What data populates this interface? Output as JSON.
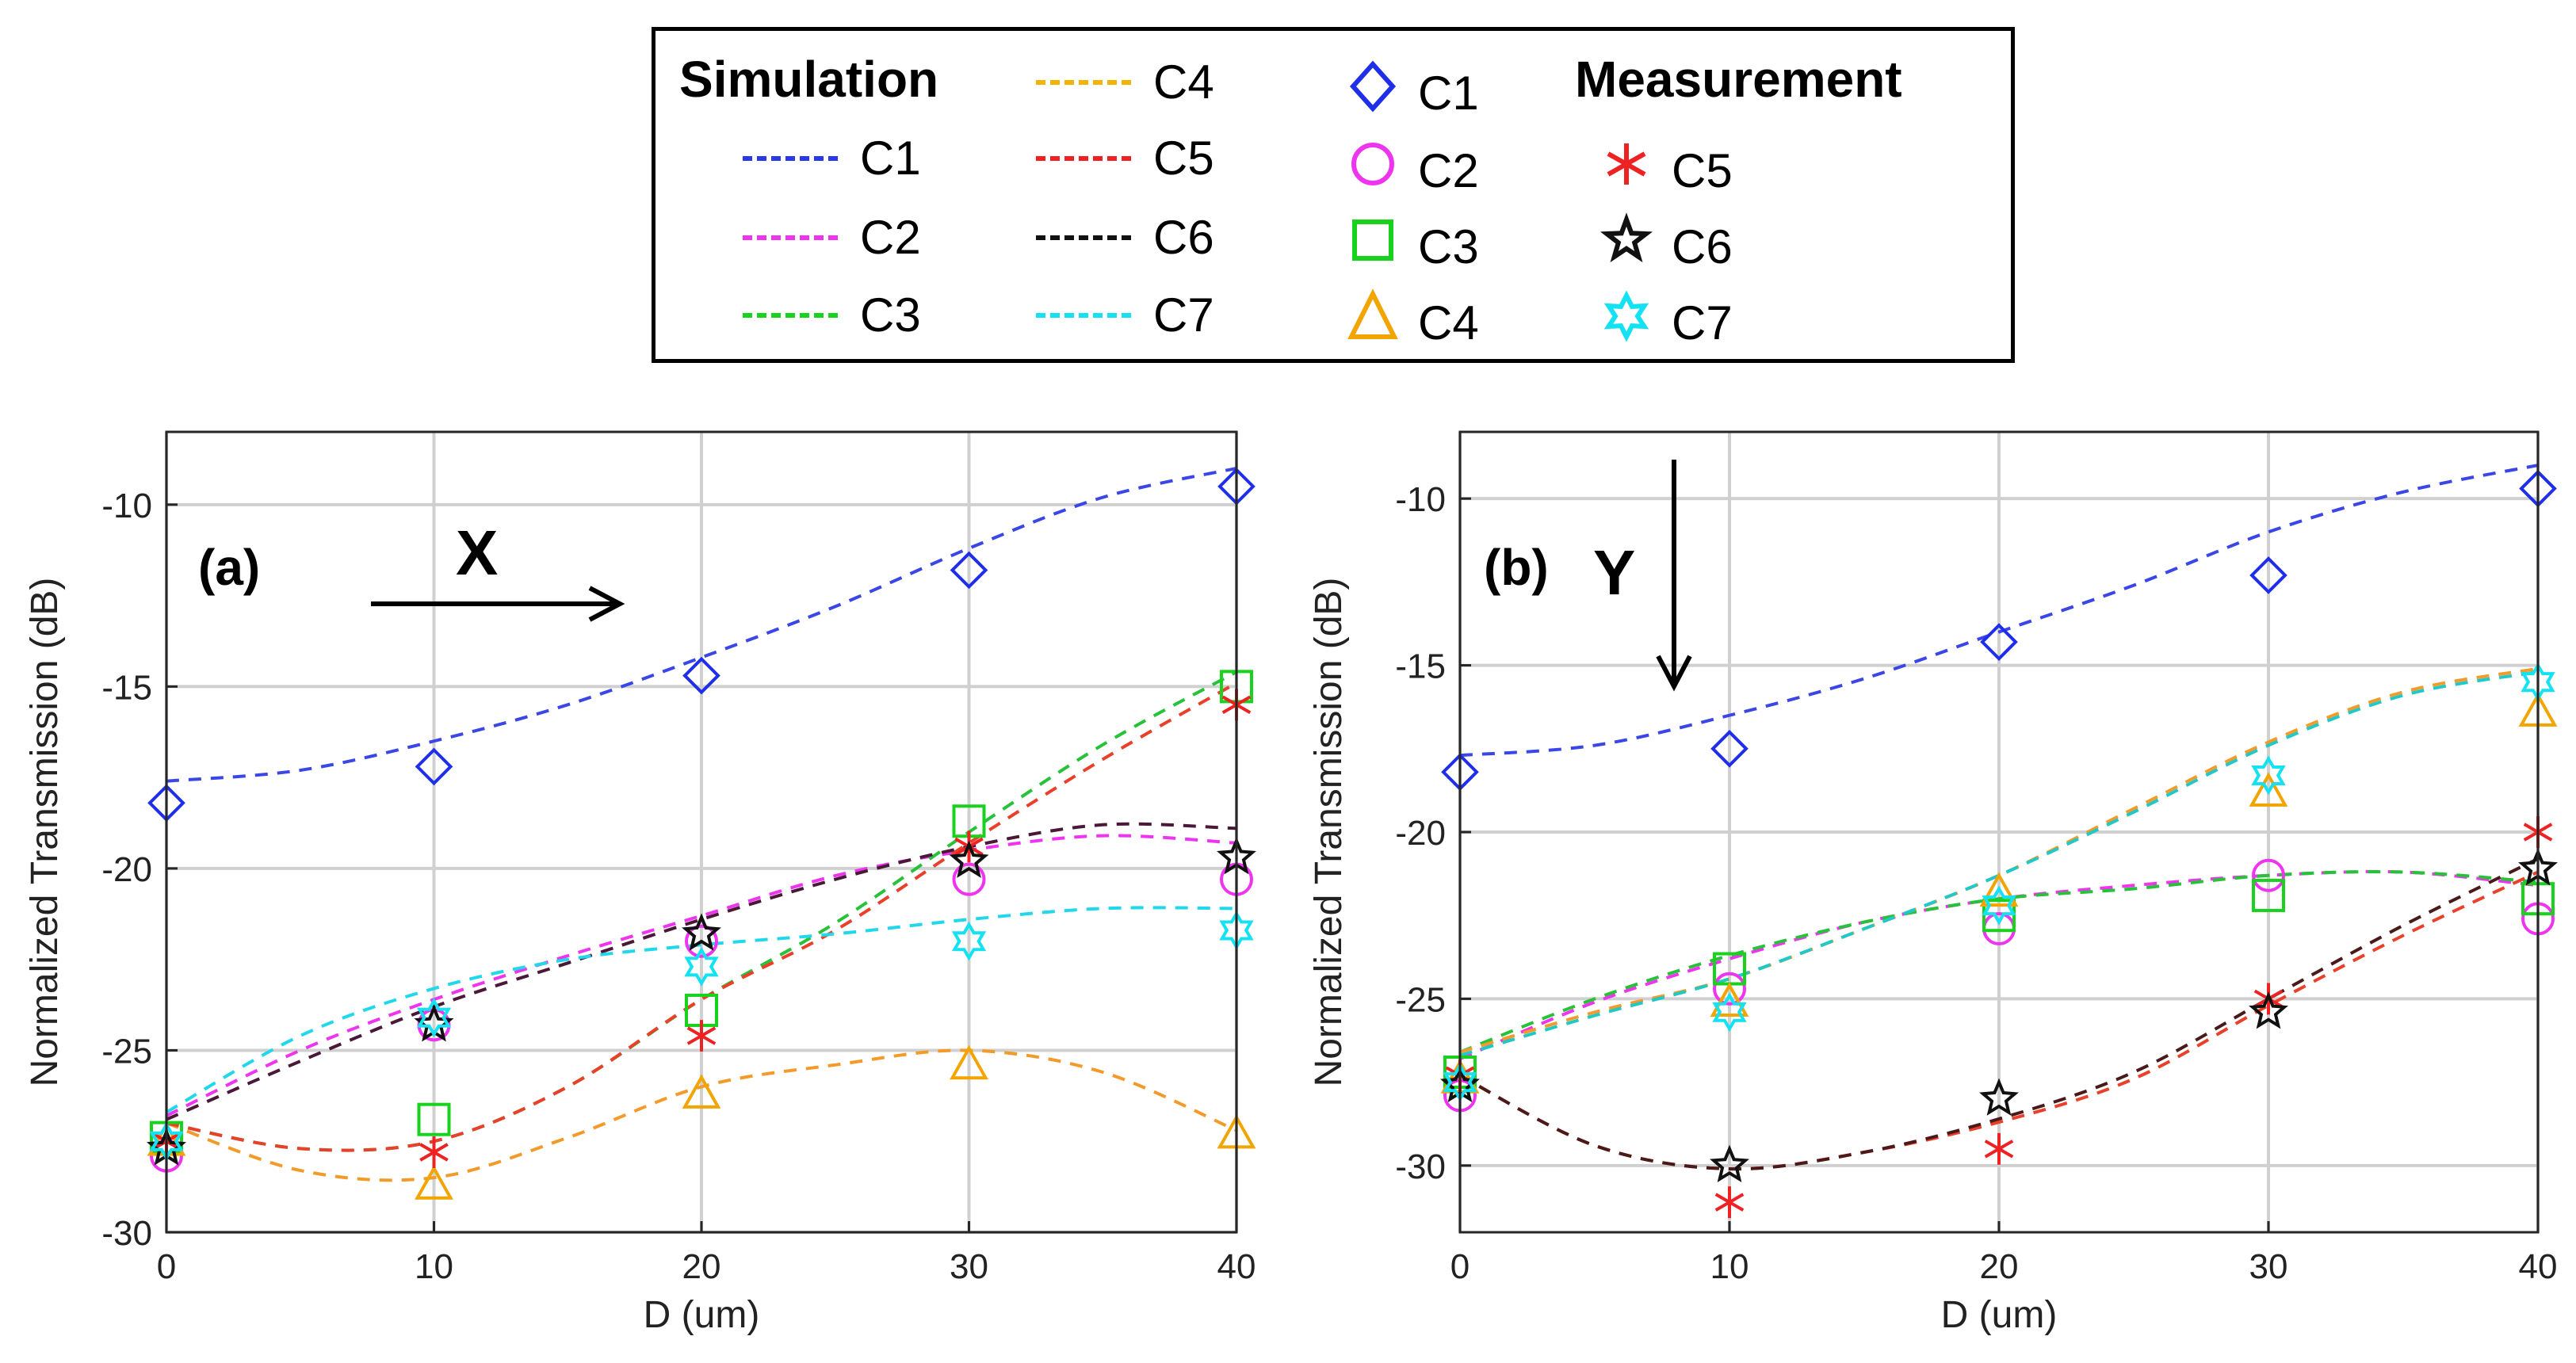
{
  "colors": {
    "C1": "#1f2ee8",
    "C2": "#ef34ef",
    "C3": "#18d21e",
    "C4": "#f2a400",
    "C5": "#ee2222",
    "C6": "#111111",
    "C7": "#14e2f2"
  },
  "sim_line_colors": {
    "a": {
      "C1": "#3a46e6",
      "C2": "#ef34ef",
      "C3": "#27c23a",
      "C4": "#f29a2a",
      "C5": "#e8402a",
      "C6": "#4a1838",
      "C7": "#20d8ea"
    },
    "b": {
      "C1": "#3a46e6",
      "C2": "#ef34ef",
      "C3": "#27c23a",
      "C4": "#f29a2a",
      "C5": "#e8402a",
      "C6": "#4a1a1a",
      "C7": "#20c8c8"
    }
  },
  "legend": {
    "simulation_title": "Simulation",
    "measurement_title": "Measurement",
    "simulation_items": [
      "C1",
      "C2",
      "C3",
      "C4",
      "C5",
      "C6",
      "C7"
    ],
    "measurement_items": [
      {
        "label": "C1",
        "marker": "diamond"
      },
      {
        "label": "C2",
        "marker": "circle"
      },
      {
        "label": "C3",
        "marker": "square"
      },
      {
        "label": "C4",
        "marker": "triangle"
      },
      {
        "label": "C5",
        "marker": "asterisk"
      },
      {
        "label": "C6",
        "marker": "star"
      },
      {
        "label": "C7",
        "marker": "hexagram"
      }
    ]
  },
  "chart_data": [
    {
      "type": "line",
      "panel": "(a)",
      "direction_label": "X",
      "direction_arrow": "right",
      "xlabel": "D (um)",
      "ylabel": "Normalized Transmission (dB)",
      "xlim": [
        0,
        40
      ],
      "ylim": [
        -30,
        -8
      ],
      "xticks": [
        0,
        10,
        20,
        30,
        40
      ],
      "yticks": [
        -30,
        -25,
        -20,
        -15,
        -10
      ],
      "grid": true,
      "simulation": [
        {
          "name": "C1",
          "x": [
            0,
            5,
            10,
            15,
            20,
            25,
            30,
            35,
            40
          ],
          "y": [
            -17.6,
            -17.3,
            -16.5,
            -15.5,
            -14.2,
            -12.8,
            -11.2,
            -9.8,
            -9.0
          ]
        },
        {
          "name": "C2",
          "x": [
            0,
            5,
            10,
            15,
            20,
            25,
            30,
            35,
            40
          ],
          "y": [
            -26.8,
            -25.0,
            -23.6,
            -22.4,
            -21.3,
            -20.2,
            -19.5,
            -19.1,
            -19.3
          ]
        },
        {
          "name": "C3",
          "x": [
            0,
            5,
            10,
            15,
            20,
            25,
            30,
            35,
            40
          ],
          "y": [
            -27.0,
            -27.7,
            -27.5,
            -26.0,
            -23.6,
            -21.5,
            -19.0,
            -16.6,
            -14.6
          ]
        },
        {
          "name": "C4",
          "x": [
            0,
            5,
            10,
            15,
            20,
            25,
            30,
            35,
            40
          ],
          "y": [
            -27.0,
            -28.3,
            -28.5,
            -27.4,
            -26.0,
            -25.4,
            -25.0,
            -25.6,
            -27.2
          ]
        },
        {
          "name": "C5",
          "x": [
            0,
            5,
            10,
            15,
            20,
            25,
            30,
            35,
            40
          ],
          "y": [
            -27.0,
            -27.7,
            -27.5,
            -26.0,
            -23.6,
            -21.7,
            -19.3,
            -17.0,
            -14.9
          ]
        },
        {
          "name": "C6",
          "x": [
            0,
            5,
            10,
            15,
            20,
            25,
            30,
            35,
            40
          ],
          "y": [
            -26.9,
            -25.3,
            -23.8,
            -22.6,
            -21.4,
            -20.3,
            -19.4,
            -18.8,
            -18.9
          ]
        },
        {
          "name": "C7",
          "x": [
            0,
            5,
            10,
            15,
            20,
            25,
            30,
            35,
            40
          ],
          "y": [
            -26.7,
            -24.6,
            -23.3,
            -22.5,
            -22.1,
            -21.8,
            -21.4,
            -21.1,
            -21.1
          ]
        }
      ],
      "measurement": [
        {
          "name": "C1",
          "marker": "diamond",
          "x": [
            0,
            10,
            20,
            30,
            40
          ],
          "y": [
            -18.2,
            -17.2,
            -14.7,
            -11.8,
            -9.5
          ]
        },
        {
          "name": "C2",
          "marker": "circle",
          "x": [
            0,
            10,
            20,
            30,
            40
          ],
          "y": [
            -27.9,
            -24.3,
            -22.0,
            -20.3,
            -20.3
          ]
        },
        {
          "name": "C3",
          "marker": "square",
          "x": [
            0,
            10,
            20,
            30,
            40
          ],
          "y": [
            -27.4,
            -26.9,
            -23.9,
            -18.7,
            -15.0
          ]
        },
        {
          "name": "C4",
          "marker": "triangle",
          "x": [
            0,
            10,
            20,
            30,
            40
          ],
          "y": [
            -27.5,
            -28.7,
            -26.2,
            -25.4,
            -27.3
          ]
        },
        {
          "name": "C5",
          "marker": "asterisk",
          "x": [
            0,
            10,
            20,
            30,
            40
          ],
          "y": [
            -27.5,
            -27.8,
            -24.6,
            -19.4,
            -15.5
          ]
        },
        {
          "name": "C6",
          "marker": "star",
          "x": [
            0,
            10,
            20,
            30,
            40
          ],
          "y": [
            -27.7,
            -24.3,
            -21.8,
            -19.8,
            -19.7
          ]
        },
        {
          "name": "C7",
          "marker": "hexagram",
          "x": [
            0,
            10,
            20,
            30,
            40
          ],
          "y": [
            -27.5,
            -24.1,
            -22.7,
            -22.0,
            -21.7
          ]
        }
      ]
    },
    {
      "type": "line",
      "panel": "(b)",
      "direction_label": "Y",
      "direction_arrow": "down",
      "xlabel": "D (um)",
      "ylabel": "Normalized Transmission (dB)",
      "xlim": [
        0,
        40
      ],
      "ylim": [
        -32,
        -8
      ],
      "xticks": [
        0,
        10,
        20,
        30,
        40
      ],
      "yticks": [
        -30,
        -25,
        -20,
        -15,
        -10
      ],
      "grid": true,
      "simulation": [
        {
          "name": "C1",
          "x": [
            0,
            5,
            10,
            15,
            20,
            25,
            30,
            35,
            40
          ],
          "y": [
            -17.7,
            -17.4,
            -16.5,
            -15.4,
            -14.0,
            -12.6,
            -11.0,
            -9.8,
            -9.0
          ]
        },
        {
          "name": "C2",
          "x": [
            0,
            5,
            10,
            15,
            20,
            25,
            30,
            35,
            40
          ],
          "y": [
            -26.8,
            -25.1,
            -23.8,
            -22.7,
            -22.0,
            -21.6,
            -21.3,
            -21.2,
            -21.6
          ]
        },
        {
          "name": "C3",
          "x": [
            0,
            5,
            10,
            15,
            20,
            25,
            30,
            35,
            40
          ],
          "y": [
            -26.6,
            -25.0,
            -23.7,
            -22.7,
            -22.0,
            -21.7,
            -21.3,
            -21.2,
            -21.5
          ]
        },
        {
          "name": "C4",
          "x": [
            0,
            5,
            10,
            15,
            20,
            25,
            30,
            35,
            40
          ],
          "y": [
            -26.6,
            -25.4,
            -24.4,
            -22.9,
            -21.3,
            -19.3,
            -17.3,
            -15.8,
            -15.1
          ]
        },
        {
          "name": "C5",
          "x": [
            0,
            5,
            10,
            15,
            20,
            25,
            30,
            35,
            40
          ],
          "y": [
            -27.3,
            -29.4,
            -30.1,
            -29.6,
            -28.7,
            -27.4,
            -25.2,
            -23.1,
            -21.2
          ]
        },
        {
          "name": "C6",
          "x": [
            0,
            5,
            10,
            15,
            20,
            25,
            30,
            35,
            40
          ],
          "y": [
            -27.3,
            -29.4,
            -30.1,
            -29.6,
            -28.6,
            -27.2,
            -25.0,
            -22.8,
            -20.8
          ]
        },
        {
          "name": "C7",
          "x": [
            0,
            5,
            10,
            15,
            20,
            25,
            30,
            35,
            40
          ],
          "y": [
            -26.7,
            -25.5,
            -24.4,
            -22.9,
            -21.3,
            -19.4,
            -17.4,
            -15.9,
            -15.2
          ]
        }
      ],
      "measurement": [
        {
          "name": "C1",
          "marker": "diamond",
          "x": [
            0,
            10,
            20,
            30,
            40
          ],
          "y": [
            -18.2,
            -17.5,
            -14.3,
            -12.3,
            -9.7
          ]
        },
        {
          "name": "C2",
          "marker": "circle",
          "x": [
            0,
            10,
            20,
            30,
            40
          ],
          "y": [
            -27.9,
            -24.7,
            -22.9,
            -21.3,
            -22.6
          ]
        },
        {
          "name": "C3",
          "marker": "square",
          "x": [
            0,
            10,
            20,
            30,
            40
          ],
          "y": [
            -27.2,
            -24.1,
            -22.5,
            -21.9,
            -22.0
          ]
        },
        {
          "name": "C4",
          "marker": "triangle",
          "x": [
            0,
            10,
            20,
            30,
            40
          ],
          "y": [
            -27.4,
            -25.1,
            -21.8,
            -18.8,
            -16.4
          ]
        },
        {
          "name": "C5",
          "marker": "asterisk",
          "x": [
            0,
            10,
            20,
            30,
            40
          ],
          "y": [
            -27.3,
            -31.1,
            -29.5,
            -25.0,
            -20.0
          ]
        },
        {
          "name": "C6",
          "marker": "star",
          "x": [
            0,
            10,
            20,
            30,
            40
          ],
          "y": [
            -27.6,
            -30.0,
            -28.0,
            -25.4,
            -21.1
          ]
        },
        {
          "name": "C7",
          "marker": "hexagram",
          "x": [
            0,
            10,
            20,
            30,
            40
          ],
          "y": [
            -27.5,
            -25.4,
            -22.2,
            -18.3,
            -15.5
          ]
        }
      ]
    }
  ]
}
